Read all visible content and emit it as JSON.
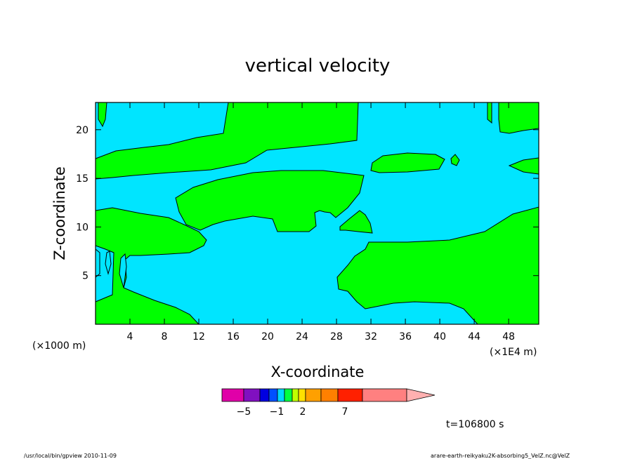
{
  "chart_data": {
    "type": "heatmap",
    "title": "vertical velocity",
    "xlabel": "X-coordinate",
    "ylabel": "Z-coordinate",
    "x_unit_left": "(×1000 m)",
    "x_unit_right": "(×1E4 m)",
    "x_ticks": [
      4,
      8,
      12,
      16,
      20,
      24,
      28,
      32,
      36,
      40,
      44,
      48
    ],
    "y_ticks": [
      5,
      10,
      15,
      20
    ],
    "xlim": [
      0,
      51.5
    ],
    "ylim": [
      0,
      22.8
    ],
    "time_label": "t=106800 s",
    "colors": {
      "positive": "#00ff00",
      "negative": "#00e5ff",
      "contour": "#000000"
    },
    "regions_note": "green = positive, cyan = negative vertical velocity",
    "colorbar": {
      "colors": [
        "#e000a8",
        "#8010c0",
        "#0000e0",
        "#0050ff",
        "#00d8ff",
        "#00ff40",
        "#c0ff00",
        "#ffe000",
        "#ffa000",
        "#ff8000",
        "#ff2000",
        "#ff8080",
        "#ffb0b0"
      ],
      "labels": [
        {
          "text": "−5",
          "value": -5
        },
        {
          "text": "−1",
          "value": -1
        },
        {
          "text": "2",
          "value": 2
        },
        {
          "text": "7",
          "value": 7
        }
      ]
    }
  },
  "footer": {
    "left": "/usr/local/bin/gpview  2010-11-09",
    "right": "arare-earth-reikyaku2K-absorbing5_VelZ.nc@VelZ"
  }
}
